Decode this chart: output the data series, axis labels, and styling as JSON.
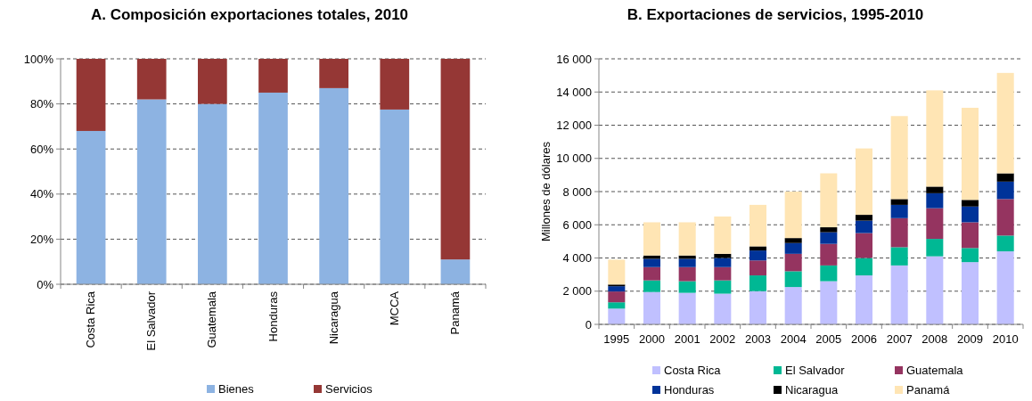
{
  "chart_data": [
    {
      "type": "bar",
      "title": "A. Composición exportaciones totales, 2010",
      "categories": [
        "Costa Rica",
        "El Salvador",
        "Guatemala",
        "Honduras",
        "Nicaragua",
        "MCCA",
        "Panamá"
      ],
      "stacked": true,
      "ylim": [
        0,
        100
      ],
      "yticks": [
        {
          "value": 0,
          "label": "0%"
        },
        {
          "value": 20,
          "label": "20%"
        },
        {
          "value": 40,
          "label": "40%"
        },
        {
          "value": 60,
          "label": "60%"
        },
        {
          "value": 80,
          "label": "80%"
        },
        {
          "value": 100,
          "label": "100%"
        }
      ],
      "grid": "y",
      "legend": "bottom",
      "series": [
        {
          "name": "Bienes",
          "color": "#8db3e2",
          "values": [
            68,
            82,
            80,
            85,
            87,
            77.5,
            11
          ]
        },
        {
          "name": "Servicios",
          "color": "#953735",
          "values": [
            32,
            18,
            20,
            15,
            13,
            22.5,
            89
          ]
        }
      ]
    },
    {
      "type": "bar",
      "title": "B. Exportaciones de servicios, 1995-2010",
      "ylabel": "Millones de dólares",
      "categories": [
        "1995",
        "2000",
        "2001",
        "2002",
        "2003",
        "2004",
        "2005",
        "2006",
        "2007",
        "2008",
        "2009",
        "2010"
      ],
      "stacked": true,
      "ylim": [
        0,
        16000
      ],
      "yticks": [
        0,
        {
          "value": 2000,
          "label": "2 000"
        },
        {
          "value": 4000,
          "label": "4 000"
        },
        {
          "value": 6000,
          "label": "6 000"
        },
        {
          "value": 8000,
          "label": "8 000"
        },
        {
          "value": 10000,
          "label": "10 000"
        },
        {
          "value": 12000,
          "label": "12 000"
        },
        {
          "value": 14000,
          "label": "14 000"
        },
        {
          "value": 16000,
          "label": "16 000"
        }
      ],
      "grid": "y",
      "legend": "bottom",
      "series": [
        {
          "name": "Costa Rica",
          "color": "#c0c0ff",
          "values": [
            950,
            1950,
            1900,
            1850,
            2000,
            2250,
            2600,
            2950,
            3550,
            4100,
            3750,
            4400
          ]
        },
        {
          "name": "El Salvador",
          "color": "#00b894",
          "values": [
            380,
            700,
            700,
            800,
            950,
            950,
            950,
            1050,
            1100,
            1050,
            850,
            950
          ]
        },
        {
          "name": "Guatemala",
          "color": "#953460",
          "values": [
            650,
            800,
            850,
            800,
            900,
            1050,
            1300,
            1500,
            1750,
            1850,
            1550,
            2200
          ]
        },
        {
          "name": "Honduras",
          "color": "#003399",
          "values": [
            320,
            500,
            500,
            550,
            600,
            650,
            700,
            750,
            800,
            900,
            950,
            1050
          ]
        },
        {
          "name": "Nicaragua",
          "color": "#000000",
          "values": [
            100,
            200,
            200,
            250,
            250,
            300,
            300,
            350,
            350,
            400,
            400,
            500
          ]
        },
        {
          "name": "Panamá",
          "color": "#ffe5b4",
          "values": [
            1500,
            2000,
            2000,
            2250,
            2500,
            2800,
            3250,
            4000,
            5000,
            5800,
            5550,
            6050
          ]
        }
      ]
    }
  ]
}
